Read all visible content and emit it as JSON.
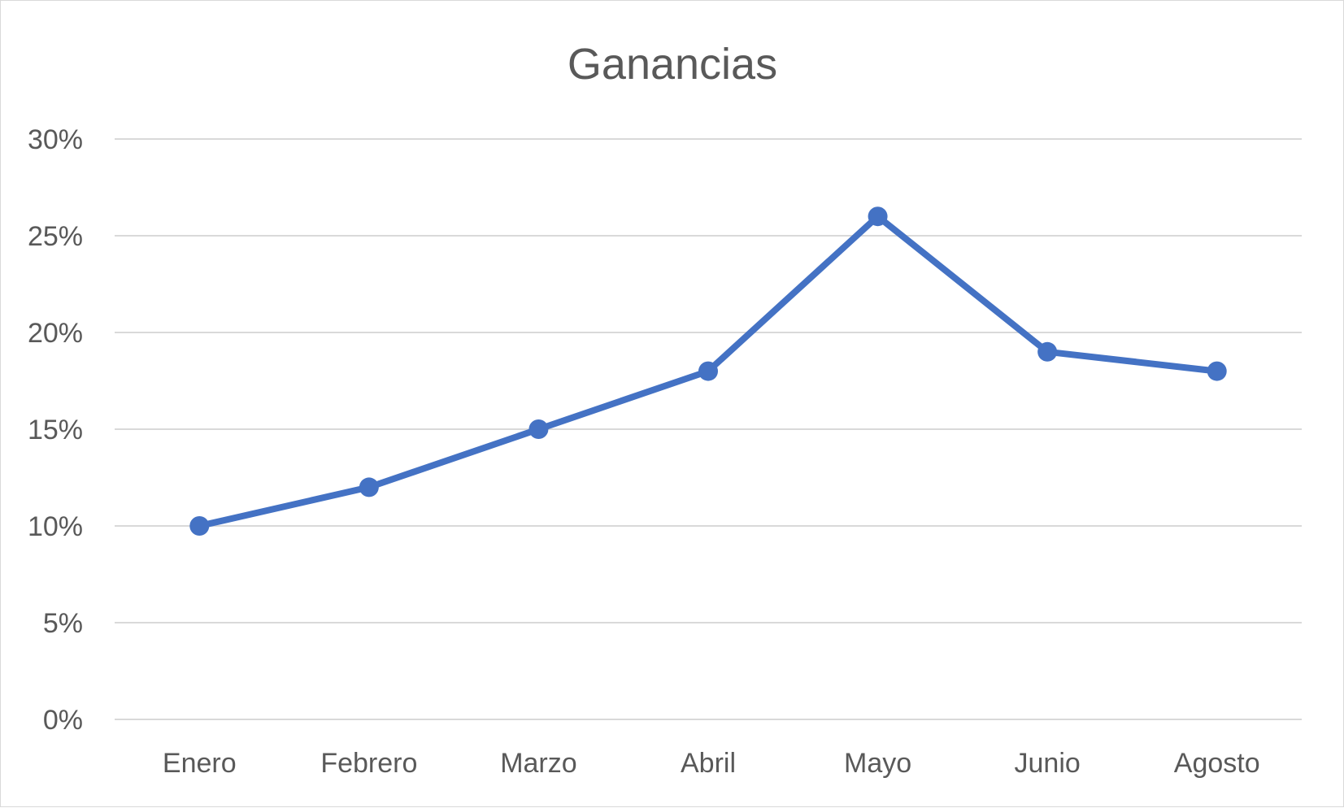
{
  "chart_data": {
    "type": "line",
    "title": "Ganancias",
    "xlabel": "",
    "ylabel": "",
    "categories": [
      "Enero",
      "Febrero",
      "Marzo",
      "Abril",
      "Mayo",
      "Junio",
      "Agosto"
    ],
    "series": [
      {
        "values": [
          10,
          12,
          15,
          18,
          26,
          19,
          18
        ],
        "color": "#4472c4"
      }
    ],
    "ylim": [
      0,
      30
    ],
    "yticks": [
      0,
      5,
      10,
      15,
      20,
      25,
      30
    ],
    "ytick_labels": [
      "0%",
      "5%",
      "10%",
      "15%",
      "20%",
      "25%",
      "30%"
    ],
    "grid": true,
    "legend": "none",
    "markers": true,
    "colors": {
      "gridline": "#d9d9d9",
      "text": "#595959",
      "border": "#d9d9d9"
    }
  }
}
